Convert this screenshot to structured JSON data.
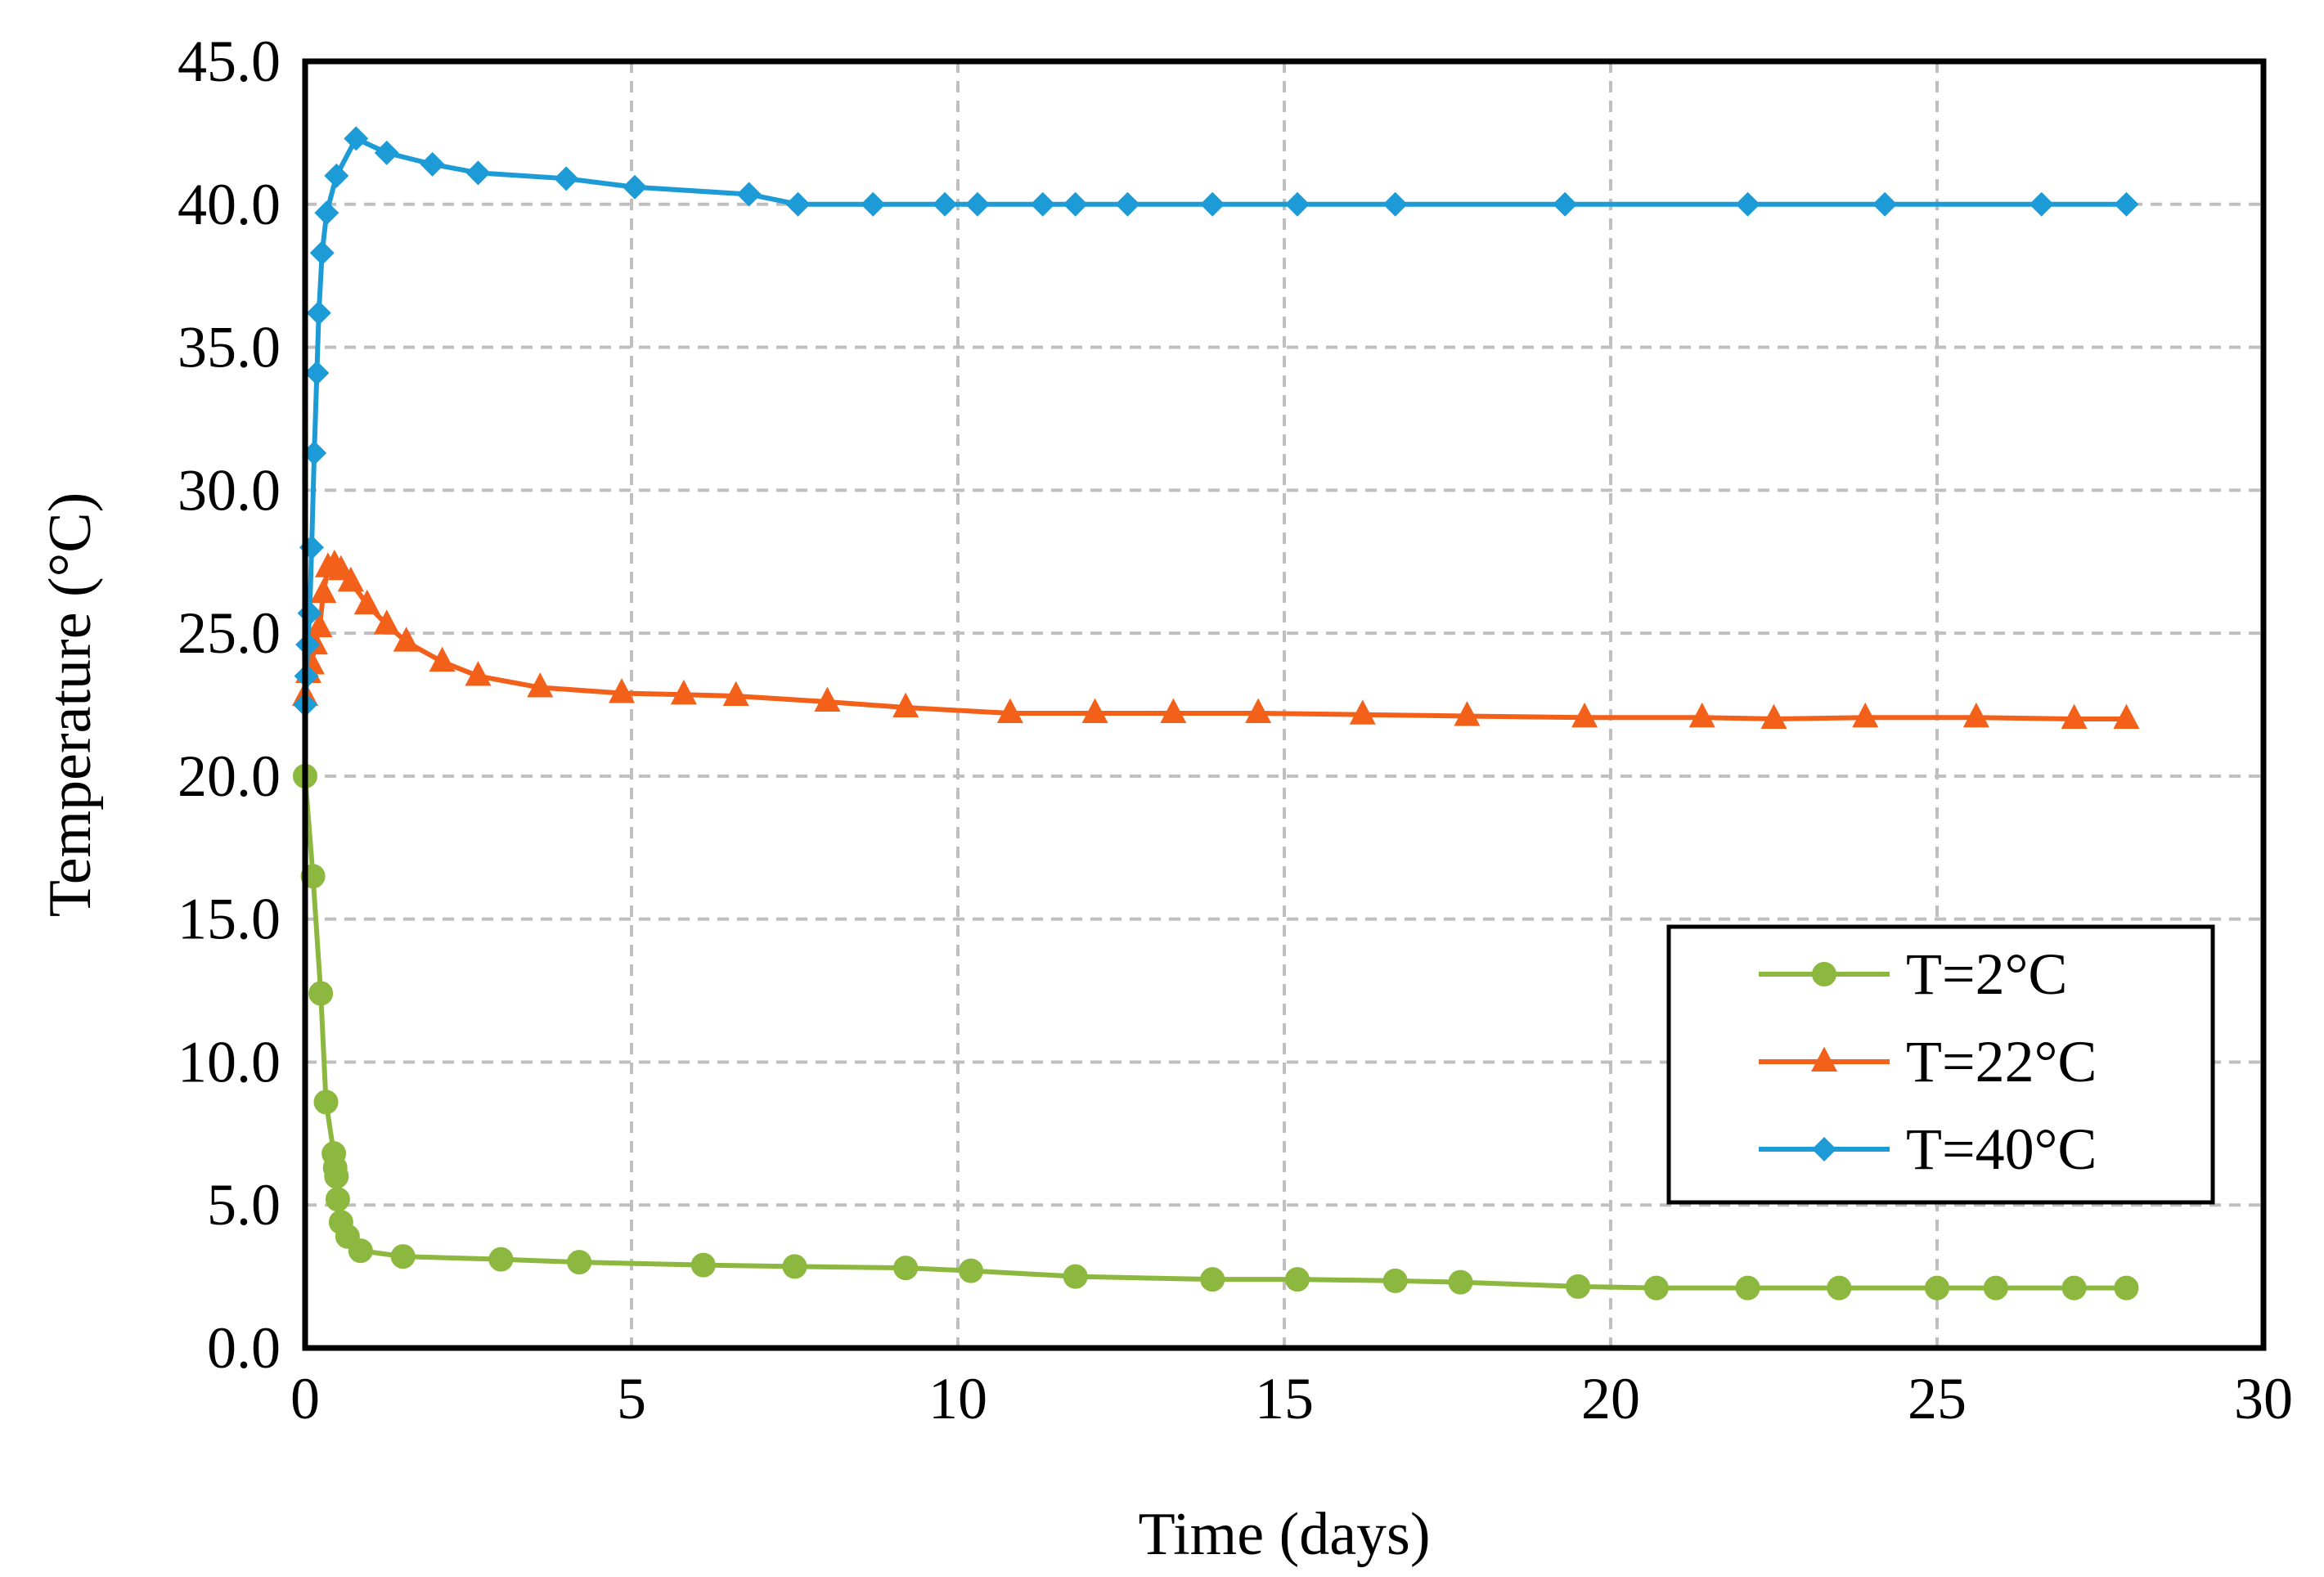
{
  "chart_data": {
    "type": "line",
    "title": "",
    "xlabel": "Time (days)",
    "ylabel": "Temperature (°C)",
    "xlim": [
      0,
      30
    ],
    "ylim": [
      0,
      45
    ],
    "grid": true,
    "legend_position": "bottom-right",
    "x_ticks": [
      {
        "value": 0,
        "label": "0"
      },
      {
        "value": 5,
        "label": "5"
      },
      {
        "value": 10,
        "label": "10"
      },
      {
        "value": 15,
        "label": "15"
      },
      {
        "value": 20,
        "label": "20"
      },
      {
        "value": 25,
        "label": "25"
      },
      {
        "value": 30,
        "label": "30"
      }
    ],
    "y_ticks": [
      {
        "value": 0,
        "label": "0.0"
      },
      {
        "value": 5,
        "label": "5.0"
      },
      {
        "value": 10,
        "label": "10.0"
      },
      {
        "value": 15,
        "label": "15.0"
      },
      {
        "value": 20,
        "label": "20.0"
      },
      {
        "value": 25,
        "label": "25.0"
      },
      {
        "value": 30,
        "label": "30.0"
      },
      {
        "value": 35,
        "label": "35.0"
      },
      {
        "value": 40,
        "label": "40.0"
      },
      {
        "value": 45,
        "label": "45.0"
      }
    ],
    "series": [
      {
        "name": "T=2°C",
        "color": "#8cb83f",
        "marker": "circle",
        "x": [
          0.0,
          0.12,
          0.24,
          0.32,
          0.44,
          0.46,
          0.48,
          0.5,
          0.55,
          0.65,
          0.85,
          1.5,
          3.0,
          4.2,
          6.1,
          7.5,
          9.2,
          10.2,
          11.8,
          13.9,
          15.2,
          16.7,
          17.7,
          19.5,
          20.7,
          22.1,
          23.5,
          25.0,
          25.9,
          27.1,
          27.9
        ],
        "y": [
          20.0,
          16.5,
          12.4,
          8.6,
          6.8,
          6.3,
          6.0,
          5.2,
          4.4,
          3.9,
          3.4,
          3.2,
          3.1,
          3.0,
          2.9,
          2.85,
          2.8,
          2.7,
          2.5,
          2.4,
          2.4,
          2.35,
          2.3,
          2.15,
          2.1,
          2.1,
          2.1,
          2.1,
          2.1,
          2.1,
          2.1
        ]
      },
      {
        "name": "T=22°C",
        "color": "#f2601a",
        "marker": "triangle",
        "x": [
          0.0,
          0.05,
          0.1,
          0.15,
          0.22,
          0.28,
          0.35,
          0.45,
          0.55,
          0.7,
          0.95,
          1.25,
          1.55,
          2.1,
          2.65,
          3.6,
          4.85,
          5.8,
          6.6,
          8.0,
          9.2,
          10.8,
          12.1,
          13.3,
          14.6,
          16.2,
          17.8,
          19.6,
          21.4,
          22.5,
          23.9,
          25.6,
          27.1,
          27.9
        ],
        "y": [
          22.8,
          23.6,
          23.9,
          24.6,
          25.2,
          26.4,
          27.3,
          27.4,
          27.2,
          26.8,
          26.0,
          25.3,
          24.7,
          24.0,
          23.5,
          23.1,
          22.9,
          22.85,
          22.8,
          22.6,
          22.4,
          22.2,
          22.2,
          22.2,
          22.2,
          22.15,
          22.1,
          22.05,
          22.05,
          22.0,
          22.05,
          22.05,
          22.0,
          22.0
        ]
      },
      {
        "name": "T=40°C",
        "color": "#1d9bd6",
        "marker": "diamond",
        "x": [
          0.0,
          0.02,
          0.04,
          0.07,
          0.1,
          0.14,
          0.18,
          0.21,
          0.26,
          0.33,
          0.48,
          0.78,
          1.25,
          1.95,
          2.65,
          4.0,
          5.05,
          6.8,
          7.55,
          8.7,
          9.8,
          10.3,
          11.3,
          11.8,
          12.6,
          13.9,
          15.2,
          16.7,
          19.3,
          22.1,
          24.2,
          26.6,
          27.9
        ],
        "y": [
          22.5,
          23.5,
          24.6,
          25.7,
          28.0,
          31.3,
          34.1,
          36.2,
          38.3,
          39.7,
          41.0,
          42.3,
          41.8,
          41.4,
          41.1,
          40.9,
          40.6,
          40.35,
          40.0,
          40.0,
          40.0,
          40.0,
          40.0,
          40.0,
          40.0,
          40.0,
          40.0,
          40.0,
          40.0,
          40.0,
          40.0,
          40.0,
          40.0
        ]
      }
    ]
  }
}
